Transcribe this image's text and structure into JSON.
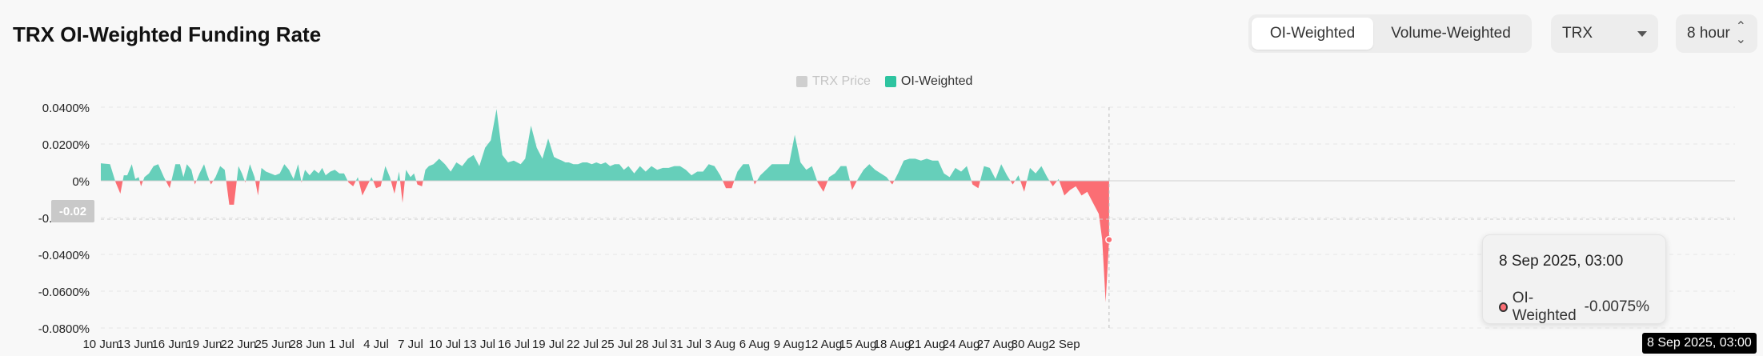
{
  "header": {
    "title": "TRX OI-Weighted Funding Rate"
  },
  "controls": {
    "weighting_options": [
      "OI-Weighted",
      "Volume-Weighted"
    ],
    "weighting_selected": "OI-Weighted",
    "asset": "TRX",
    "interval": "8 hour"
  },
  "tooltip": {
    "date": "8 Sep 2025, 03:00",
    "series": "OI-Weighted",
    "value": "-0.0075%"
  },
  "crosshair": {
    "x_label": "8 Sep 2025, 03:00",
    "y_label": "-0.02"
  },
  "colors": {
    "positive": "#66cfba",
    "negative": "#fb6e74",
    "price": "#c8c8c8",
    "legend_oi": "#2ec4a0"
  },
  "chart_data": {
    "type": "area",
    "title": "TRX OI-Weighted Funding Rate",
    "legend": [
      {
        "name": "TRX Price",
        "visible": false
      },
      {
        "name": "OI-Weighted",
        "visible": true
      }
    ],
    "legend_placement": "top-center",
    "grid": true,
    "y_unit": "%",
    "ylim": [
      -0.08,
      0.04
    ],
    "y_ticks": [
      "0.0400%",
      "0.0200%",
      "0%",
      "-0.0200%",
      "-0.0400%",
      "-0.0600%",
      "-0.0800%"
    ],
    "x_ticks": [
      "10 Jun",
      "13 Jun",
      "16 Jun",
      "19 Jun",
      "22 Jun",
      "25 Jun",
      "28 Jun",
      "1 Jul",
      "4 Jul",
      "7 Jul",
      "10 Jul",
      "13 Jul",
      "16 Jul",
      "19 Jul",
      "22 Jul",
      "25 Jul",
      "28 Jul",
      "31 Jul",
      "3 Aug",
      "6 Aug",
      "9 Aug",
      "12 Aug",
      "15 Aug",
      "18 Aug",
      "21 Aug",
      "24 Aug",
      "27 Aug",
      "30 Aug",
      "2 Sep"
    ],
    "series": [
      {
        "name": "OI-Weighted",
        "x_day_index": [
          0,
          0.8,
          1.3,
          1.7,
          2.0,
          2.3,
          2.7,
          3.0,
          3.3,
          3.5,
          3.8,
          4.2,
          4.6,
          5.0,
          5.5,
          6.0,
          6.5,
          6.9,
          7.2,
          7.5,
          7.9,
          8.2,
          8.6,
          9.0,
          9.3,
          9.6,
          10.0,
          10.4,
          10.8,
          11.2,
          11.6,
          12.0,
          12.3,
          12.6,
          13.0,
          13.4,
          13.7,
          14.0,
          14.4,
          14.8,
          15.2,
          15.6,
          16.0,
          16.4,
          16.8,
          17.2,
          17.5,
          17.8,
          18.2,
          18.6,
          19.0,
          19.3,
          19.6,
          20.0,
          20.4,
          20.8,
          21.2,
          21.6,
          22.0,
          22.4,
          22.8,
          23.2,
          23.6,
          24.0,
          24.4,
          24.8,
          25.2,
          25.6,
          26.0,
          26.3,
          26.6,
          27.0,
          27.3,
          27.6,
          28.0,
          28.3,
          28.6,
          29.0,
          29.5,
          30.0,
          30.5,
          31.0,
          31.5,
          32.0,
          32.5,
          33.0,
          33.5,
          34.0,
          34.5,
          35.0,
          35.5,
          36.0,
          36.3,
          36.6,
          37.0,
          37.5,
          38.0,
          38.5,
          39.0,
          39.5,
          39.8,
          40.2,
          40.5,
          40.8,
          41.2,
          41.6,
          42.0,
          42.4,
          42.8,
          43.2,
          43.6,
          44.0,
          44.4,
          44.8,
          45.2,
          45.6,
          46.0,
          46.5,
          47.0,
          47.5,
          48.0,
          48.5,
          49.0,
          49.5,
          50.0,
          50.5,
          51.0,
          51.5,
          52.0,
          52.5,
          53.0,
          53.5,
          54.0,
          54.5,
          55.0,
          55.5,
          56.0,
          56.5,
          57.0,
          57.5,
          58.0,
          58.5,
          59.0,
          59.5,
          60.0,
          60.5,
          61.0,
          61.5,
          62.0,
          62.5,
          63.0,
          63.5,
          64.0,
          64.5,
          65.0,
          65.5,
          66.0,
          66.5,
          67.0,
          67.5,
          68.0,
          68.5,
          69.0,
          69.5,
          70.0,
          70.5,
          71.0,
          71.5,
          72.0,
          72.5,
          73.0,
          73.5,
          74.0,
          74.5,
          75.0,
          75.5,
          76.0,
          76.5,
          77.0,
          77.5,
          78.0,
          78.5,
          79.0,
          79.5,
          80.0,
          80.5,
          81.0,
          81.5,
          82.0,
          82.5,
          83.0,
          83.5,
          84.0,
          84.5,
          85.0,
          85.5,
          86.0,
          86.5,
          87.0,
          87.3,
          87.6,
          87.9
        ],
        "values": [
          0.0095,
          0.009,
          -0.001,
          -0.007,
          0.003,
          0.003,
          0.009,
          0.001,
          0.002,
          -0.003,
          0.002,
          0.004,
          0.008,
          0.009,
          0.002,
          -0.004,
          0.009,
          0.009,
          0.002,
          0.009,
          0.006,
          -0.002,
          0.004,
          0.009,
          0.003,
          -0.002,
          0.002,
          0.008,
          0.006,
          -0.013,
          -0.013,
          0.008,
          0.004,
          -0.001,
          0.009,
          0.002,
          -0.008,
          0.007,
          0.005,
          0.004,
          0.003,
          0.004,
          0.009,
          0.006,
          0.001,
          0.009,
          -0.001,
          0.006,
          0.003,
          0.006,
          0.004,
          0.007,
          0.003,
          0.005,
          0.006,
          0.004,
          0.004,
          -0.001,
          -0.003,
          0.002,
          -0.008,
          -0.003,
          0.002,
          -0.004,
          -0.003,
          0.008,
          0.002,
          -0.007,
          0.005,
          -0.012,
          0.006,
          0.002,
          0.004,
          -0.002,
          -0.003,
          0.006,
          0.008,
          0.009,
          0.012,
          0.009,
          0.005,
          0.01,
          0.008,
          0.012,
          0.014,
          0.008,
          0.018,
          0.022,
          0.039,
          0.014,
          0.01,
          0.011,
          0.01,
          0.009,
          0.012,
          0.03,
          0.018,
          0.012,
          0.023,
          0.013,
          0.012,
          0.011,
          0.01,
          0.01,
          0.009,
          0.009,
          0.01,
          0.01,
          0.009,
          0.01,
          0.009,
          0.01,
          0.008,
          0.009,
          0.009,
          0.006,
          0.008,
          0.004,
          0.008,
          0.005,
          0.008,
          0.006,
          0.007,
          0.007,
          0.008,
          0.008,
          0.006,
          0.003,
          0.005,
          0.005,
          0.009,
          0.008,
          0.003,
          -0.004,
          -0.004,
          0.005,
          0.009,
          0.009,
          -0.002,
          0.003,
          0.006,
          0.009,
          0.009,
          0.009,
          0.009,
          0.025,
          0.01,
          0.006,
          0.008,
          -0.001,
          -0.006,
          0.002,
          0.004,
          0.008,
          0.008,
          -0.005,
          0.001,
          0.006,
          0.009,
          0.006,
          0.004,
          0.002,
          -0.002,
          0.004,
          0.011,
          0.012,
          0.012,
          0.011,
          0.012,
          0.011,
          0.011,
          0.004,
          0.002,
          0.007,
          0.005,
          0.008,
          -0.002,
          -0.004,
          0.008,
          0.007,
          0.001,
          0.009,
          0.003,
          -0.002,
          0.003,
          -0.006,
          0.007,
          0.004,
          0.008,
          0.002,
          -0.003,
          0.001,
          -0.008,
          -0.005,
          -0.003,
          -0.008,
          -0.006,
          -0.012,
          -0.018,
          -0.032,
          -0.066,
          -0.032,
          -0.0075
        ]
      }
    ]
  }
}
